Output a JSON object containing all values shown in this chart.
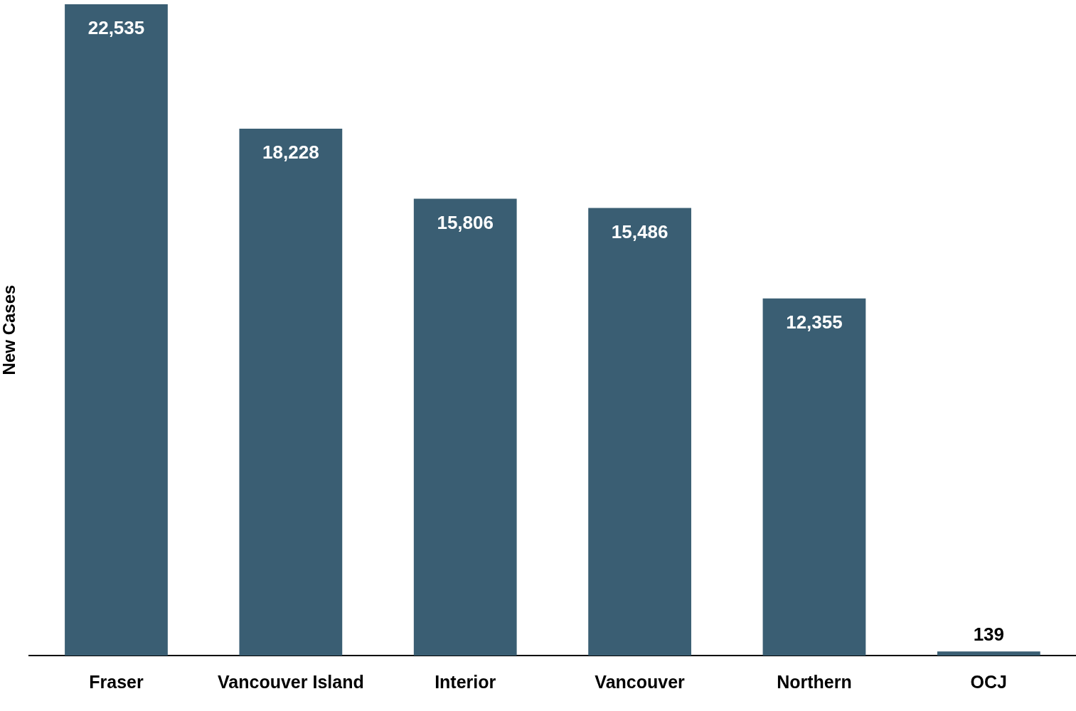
{
  "chart_data": {
    "type": "bar",
    "ylabel": "New Cases",
    "categories": [
      "Fraser",
      "Vancouver Island",
      "Interior",
      "Vancouver",
      "Northern",
      "OCJ"
    ],
    "values": [
      22535,
      18228,
      15806,
      15486,
      12355,
      139
    ],
    "color": "#3a5e73",
    "ylim": [
      0,
      22535
    ],
    "data_labels": true,
    "value_labels": [
      "22,535",
      "18,228",
      "15,806",
      "15,486",
      "12,355",
      "139"
    ],
    "grid": false,
    "legend": false
  }
}
